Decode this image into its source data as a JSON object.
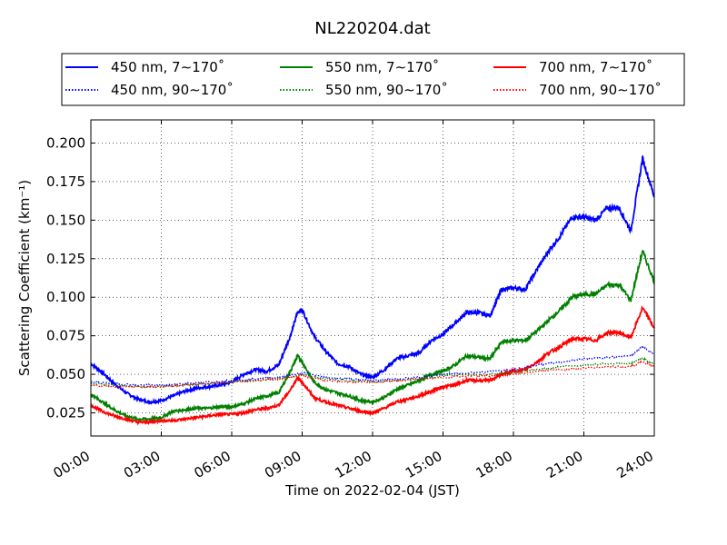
{
  "chart_data": {
    "type": "line",
    "title": "NL220204.dat",
    "xlabel": "Time on 2022-02-04 (JST)",
    "ylabel": "Scattering Coefficient (km⁻¹)",
    "x_unit": "hours",
    "xlim": [
      0,
      24
    ],
    "ylim": [
      0.01,
      0.215
    ],
    "x_ticks": [
      0,
      3,
      6,
      9,
      12,
      15,
      18,
      21,
      24
    ],
    "x_tick_labels": [
      "00:00",
      "03:00",
      "06:00",
      "09:00",
      "12:00",
      "15:00",
      "18:00",
      "21:00",
      "24:00"
    ],
    "y_ticks": [
      0.025,
      0.05,
      0.075,
      0.1,
      0.125,
      0.15,
      0.175,
      0.2
    ],
    "y_tick_labels": [
      "0.025",
      "0.050",
      "0.075",
      "0.100",
      "0.125",
      "0.150",
      "0.175",
      "0.200"
    ],
    "grid": true,
    "legend_position": "top (above axes), 3 columns",
    "series": [
      {
        "name": "450 nm, 7∼170˚",
        "color": "#0000ff",
        "style": "solid",
        "x": [
          0,
          0.5,
          1,
          1.5,
          2,
          2.5,
          3,
          3.5,
          4,
          4.5,
          5,
          5.5,
          6,
          6.5,
          7,
          7.5,
          8,
          8.5,
          8.8,
          9,
          9.5,
          10,
          10.5,
          11,
          11.5,
          12,
          12.5,
          13,
          13.5,
          14,
          14.5,
          15,
          15.5,
          16,
          16.5,
          17,
          17.5,
          18,
          18.5,
          19,
          19.5,
          20,
          20.5,
          21,
          21.5,
          22,
          22.5,
          23,
          23.5,
          24
        ],
        "y": [
          0.057,
          0.051,
          0.044,
          0.038,
          0.034,
          0.032,
          0.033,
          0.036,
          0.039,
          0.041,
          0.042,
          0.043,
          0.045,
          0.05,
          0.053,
          0.052,
          0.056,
          0.075,
          0.09,
          0.092,
          0.075,
          0.065,
          0.057,
          0.055,
          0.05,
          0.048,
          0.053,
          0.06,
          0.062,
          0.064,
          0.072,
          0.076,
          0.083,
          0.09,
          0.09,
          0.088,
          0.105,
          0.106,
          0.105,
          0.118,
          0.13,
          0.14,
          0.152,
          0.152,
          0.15,
          0.158,
          0.158,
          0.143,
          0.19,
          0.165
        ]
      },
      {
        "name": "550 nm, 7∼170˚",
        "color": "#008000",
        "style": "solid",
        "x": [
          0,
          0.5,
          1,
          1.5,
          2,
          2.5,
          3,
          3.5,
          4,
          4.5,
          5,
          5.5,
          6,
          6.5,
          7,
          7.5,
          8,
          8.5,
          8.8,
          9,
          9.5,
          10,
          10.5,
          11,
          11.5,
          12,
          12.5,
          13,
          13.5,
          14,
          14.5,
          15,
          15.5,
          16,
          16.5,
          17,
          17.5,
          18,
          18.5,
          19,
          19.5,
          20,
          20.5,
          21,
          21.5,
          22,
          22.5,
          23,
          23.5,
          24
        ],
        "y": [
          0.037,
          0.032,
          0.027,
          0.023,
          0.021,
          0.021,
          0.022,
          0.026,
          0.027,
          0.028,
          0.028,
          0.029,
          0.029,
          0.031,
          0.034,
          0.036,
          0.038,
          0.052,
          0.062,
          0.058,
          0.045,
          0.04,
          0.038,
          0.036,
          0.033,
          0.032,
          0.035,
          0.04,
          0.043,
          0.046,
          0.05,
          0.052,
          0.056,
          0.062,
          0.061,
          0.06,
          0.071,
          0.072,
          0.072,
          0.078,
          0.085,
          0.092,
          0.1,
          0.102,
          0.102,
          0.108,
          0.108,
          0.098,
          0.13,
          0.11
        ]
      },
      {
        "name": "700 nm, 7∼170˚",
        "color": "#ff0000",
        "style": "solid",
        "x": [
          0,
          0.5,
          1,
          1.5,
          2,
          2.5,
          3,
          3.5,
          4,
          4.5,
          5,
          5.5,
          6,
          6.5,
          7,
          7.5,
          8,
          8.5,
          8.8,
          9,
          9.5,
          10,
          10.5,
          11,
          11.5,
          12,
          12.5,
          13,
          13.5,
          14,
          14.5,
          15,
          15.5,
          16,
          16.5,
          17,
          17.5,
          18,
          18.5,
          19,
          19.5,
          20,
          20.5,
          21,
          21.5,
          22,
          22.5,
          23,
          23.5,
          24
        ],
        "y": [
          0.03,
          0.026,
          0.023,
          0.021,
          0.019,
          0.019,
          0.02,
          0.02,
          0.021,
          0.022,
          0.023,
          0.024,
          0.024,
          0.025,
          0.027,
          0.028,
          0.03,
          0.04,
          0.048,
          0.045,
          0.035,
          0.032,
          0.03,
          0.028,
          0.026,
          0.025,
          0.028,
          0.032,
          0.034,
          0.036,
          0.039,
          0.042,
          0.043,
          0.046,
          0.046,
          0.046,
          0.05,
          0.052,
          0.053,
          0.058,
          0.064,
          0.068,
          0.073,
          0.073,
          0.072,
          0.077,
          0.077,
          0.074,
          0.093,
          0.08
        ]
      },
      {
        "name": "450 nm, 90∼170˚",
        "color": "#0000ff",
        "style": "dotted",
        "x": [
          0,
          1,
          2,
          3,
          4,
          5,
          6,
          7,
          8,
          9,
          10,
          11,
          12,
          13,
          14,
          15,
          16,
          17,
          18,
          19,
          20,
          21,
          22,
          23,
          23.5,
          24
        ],
        "y": [
          0.045,
          0.044,
          0.043,
          0.043,
          0.044,
          0.045,
          0.046,
          0.047,
          0.048,
          0.051,
          0.048,
          0.047,
          0.046,
          0.047,
          0.048,
          0.05,
          0.051,
          0.052,
          0.053,
          0.056,
          0.058,
          0.06,
          0.061,
          0.062,
          0.068,
          0.063
        ]
      },
      {
        "name": "550 nm, 90∼170˚",
        "color": "#008000",
        "style": "dotted",
        "x": [
          0,
          1,
          2,
          3,
          4,
          5,
          6,
          7,
          8,
          9,
          10,
          11,
          12,
          13,
          14,
          15,
          16,
          17,
          18,
          19,
          20,
          21,
          22,
          23,
          23.5,
          24
        ],
        "y": [
          0.044,
          0.043,
          0.042,
          0.042,
          0.043,
          0.044,
          0.045,
          0.046,
          0.047,
          0.05,
          0.047,
          0.046,
          0.045,
          0.046,
          0.047,
          0.049,
          0.05,
          0.05,
          0.051,
          0.053,
          0.055,
          0.056,
          0.057,
          0.057,
          0.06,
          0.057
        ]
      },
      {
        "name": "700 nm, 90∼170˚",
        "color": "#ff0000",
        "style": "dotted",
        "x": [
          0,
          1,
          2,
          3,
          4,
          5,
          6,
          7,
          8,
          9,
          10,
          11,
          12,
          13,
          14,
          15,
          16,
          17,
          18,
          19,
          20,
          21,
          22,
          23,
          23.5,
          24
        ],
        "y": [
          0.043,
          0.042,
          0.042,
          0.042,
          0.043,
          0.044,
          0.045,
          0.046,
          0.047,
          0.049,
          0.046,
          0.045,
          0.045,
          0.046,
          0.047,
          0.048,
          0.049,
          0.049,
          0.05,
          0.052,
          0.053,
          0.054,
          0.055,
          0.055,
          0.058,
          0.055
        ]
      }
    ]
  }
}
